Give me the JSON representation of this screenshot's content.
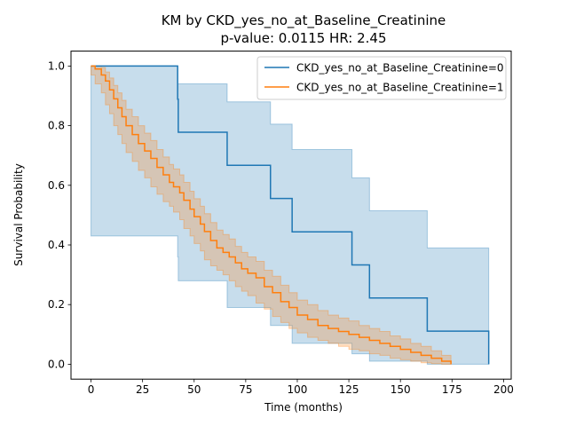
{
  "chart_data": {
    "type": "line",
    "title_line1": "KM by CKD_yes_no_at_Baseline_Creatinine",
    "title_line2": "p-value: 0.0115  HR: 2.45",
    "xlabel": "Time (months)",
    "ylabel": "Survival Probability",
    "xlim": [
      -9.7,
      203.7
    ],
    "ylim": [
      -0.05,
      1.05
    ],
    "xticks": [
      0,
      25,
      50,
      75,
      100,
      125,
      150,
      175,
      200
    ],
    "yticks": [
      0.0,
      0.2,
      0.4,
      0.6,
      0.8,
      1.0
    ],
    "grid": false,
    "legend_position": "top-right",
    "step": "post",
    "series": [
      {
        "name": "CKD_yes_no_at_Baseline_Creatinine=0",
        "color": "#1f77b4",
        "band_color": "#1f77b4",
        "x": [
          0,
          42,
          42.3,
          66,
          87,
          97.5,
          126.5,
          135,
          163,
          192.8
        ],
        "y": [
          1.0,
          0.889,
          0.778,
          0.667,
          0.556,
          0.444,
          0.333,
          0.222,
          0.111,
          0.0
        ],
        "ci_lower": [
          1.0,
          0.43,
          0.36,
          0.28,
          0.19,
          0.13,
          0.07,
          0.035,
          0.01,
          0.0
        ],
        "ci_upper": [
          1.0,
          0.94,
          0.94,
          0.88,
          0.805,
          0.72,
          0.625,
          0.515,
          0.39,
          0.0
        ]
      },
      {
        "name": "CKD_yes_no_at_Baseline_Creatinine=1",
        "color": "#ff7f0e",
        "band_color": "#ff7f0e",
        "x": [
          0,
          2,
          5,
          7,
          9,
          11,
          13,
          15,
          17,
          20,
          23,
          26,
          29,
          32,
          35,
          38,
          40,
          43,
          45,
          48,
          50,
          53,
          55,
          58,
          61,
          64,
          67,
          70,
          73,
          76,
          80,
          84,
          88,
          92,
          96,
          100,
          105,
          110,
          115,
          120,
          125,
          130,
          135,
          140,
          145,
          150,
          155,
          160,
          165,
          170,
          174.5
        ],
        "y": [
          1.0,
          0.99,
          0.97,
          0.95,
          0.92,
          0.89,
          0.86,
          0.83,
          0.8,
          0.77,
          0.74,
          0.715,
          0.69,
          0.66,
          0.635,
          0.61,
          0.595,
          0.575,
          0.55,
          0.52,
          0.495,
          0.47,
          0.445,
          0.415,
          0.39,
          0.375,
          0.36,
          0.34,
          0.32,
          0.305,
          0.29,
          0.26,
          0.24,
          0.21,
          0.19,
          0.165,
          0.15,
          0.13,
          0.12,
          0.11,
          0.1,
          0.09,
          0.08,
          0.07,
          0.06,
          0.05,
          0.04,
          0.03,
          0.02,
          0.01,
          0.0
        ],
        "ci_lower": [
          1.0,
          0.97,
          0.94,
          0.91,
          0.87,
          0.84,
          0.8,
          0.77,
          0.74,
          0.71,
          0.68,
          0.65,
          0.625,
          0.595,
          0.57,
          0.545,
          0.53,
          0.51,
          0.485,
          0.455,
          0.43,
          0.405,
          0.38,
          0.35,
          0.33,
          0.315,
          0.3,
          0.28,
          0.26,
          0.245,
          0.23,
          0.205,
          0.185,
          0.16,
          0.14,
          0.12,
          0.105,
          0.09,
          0.08,
          0.07,
          0.06,
          0.05,
          0.045,
          0.035,
          0.03,
          0.02,
          0.015,
          0.01,
          0.005,
          0.002,
          0.0
        ],
        "ci_upper": [
          1.0,
          1.0,
          0.995,
          0.98,
          0.96,
          0.935,
          0.91,
          0.885,
          0.855,
          0.83,
          0.8,
          0.775,
          0.75,
          0.72,
          0.695,
          0.67,
          0.655,
          0.635,
          0.61,
          0.58,
          0.555,
          0.53,
          0.505,
          0.475,
          0.45,
          0.435,
          0.42,
          0.395,
          0.375,
          0.36,
          0.345,
          0.315,
          0.295,
          0.265,
          0.24,
          0.215,
          0.2,
          0.18,
          0.165,
          0.155,
          0.145,
          0.13,
          0.12,
          0.11,
          0.095,
          0.085,
          0.07,
          0.06,
          0.045,
          0.03,
          0.02
        ]
      }
    ]
  }
}
